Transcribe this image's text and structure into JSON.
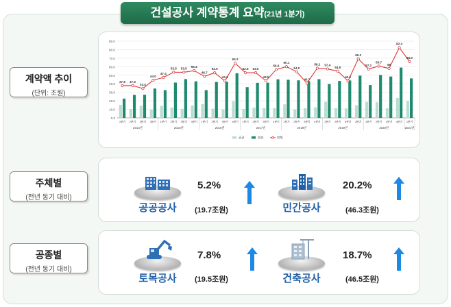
{
  "title": {
    "main": "건설공사 계약통계 요약",
    "sub": "(21년 1분기)"
  },
  "sections": {
    "trend": {
      "label": "계약액 추이",
      "sublabel": "(단위: 조원)"
    },
    "by_entity": {
      "label": "주체별",
      "sublabel": "(전년 동기 대비)"
    },
    "by_type": {
      "label": "공종별",
      "sublabel": "(전년 동기 대비)"
    }
  },
  "entity": [
    {
      "name": "공공공사",
      "pct": "5.2%",
      "amount": "(19.7조원)",
      "icon": "office-buildings-icon",
      "direction": "up"
    },
    {
      "name": "민간공사",
      "pct": "20.2%",
      "amount": "(46.3조원)",
      "icon": "city-towers-icon",
      "direction": "up"
    }
  ],
  "work_type": [
    {
      "name": "토목공사",
      "pct": "7.8%",
      "amount": "(19.5조원)",
      "icon": "excavator-icon",
      "direction": "up"
    },
    {
      "name": "건축공사",
      "pct": "18.7%",
      "amount": "(46.5조원)",
      "icon": "construction-crane-icon",
      "direction": "up"
    }
  ],
  "colors": {
    "public": "#b9ddd0",
    "private": "#1f8a6e",
    "total": "#e03434",
    "arrow": "#1e88e5",
    "title": "#1d6b47",
    "category_text": "#1f5fa8"
  },
  "chart_data": {
    "type": "bar",
    "ylim": [
      0,
      90
    ],
    "yticks": [
      "0.0",
      "10.0",
      "20.0",
      "30.0",
      "40.0",
      "50.0",
      "60.0",
      "70.0",
      "80.0",
      "90.0"
    ],
    "categories": [
      "1분기",
      "2분기",
      "3분기",
      "4분기",
      "1분기",
      "2분기",
      "3분기",
      "4분기",
      "1분기",
      "2분기",
      "3분기",
      "4분기",
      "1분기",
      "2분기",
      "3분기",
      "4분기",
      "1분기",
      "2분기",
      "3분기",
      "4분기",
      "1분기",
      "2분기",
      "3분기",
      "4분기",
      "1분기",
      "2분기",
      "3분기",
      "4분기",
      "1분기"
    ],
    "years": [
      {
        "label": "2014년",
        "count": 4
      },
      {
        "label": "2015년",
        "count": 4
      },
      {
        "label": "2016년",
        "count": 4
      },
      {
        "label": "2017년",
        "count": 4
      },
      {
        "label": "2018년",
        "count": 4
      },
      {
        "label": "2019년",
        "count": 4
      },
      {
        "label": "2020년",
        "count": 4
      },
      {
        "label": "2021년",
        "count": 1
      }
    ],
    "series": [
      {
        "name": "공공",
        "type": "bar",
        "values": [
          15.2,
          10.4,
          14.3,
          9.6,
          14.0,
          12.0,
          10.6,
          14.6,
          16.2,
          10.8,
          10.0,
          19.7,
          10.4,
          11.9,
          11.5,
          11.4,
          15.9,
          9.9,
          11.3,
          12.4,
          18.8,
          11.4,
          11.0,
          14.7,
          18.7,
          18.3,
          11.2,
          23.4,
          19.7
        ]
      },
      {
        "name": "민간",
        "type": "bar",
        "values": [
          22.6,
          26.9,
          27.1,
          34.4,
          32.5,
          41.4,
          45.5,
          42.8,
          32.5,
          42.1,
          42.3,
          52.3,
          36.0,
          41.1,
          41.3,
          45.2,
          44.7,
          44.0,
          43.0,
          45.4,
          39.6,
          43.3,
          43.9,
          49.5,
          38.5,
          50.3,
          48.5,
          59.0,
          46.3
        ]
      },
      {
        "name": "전체",
        "type": "line",
        "values": [
          37.8,
          37.9,
          34.4,
          44.0,
          47.4,
          53.5,
          53.5,
          55.4,
          48.7,
          52.9,
          43.3,
          64.2,
          52.9,
          53.0,
          43.5,
          56.6,
          60.1,
          54.0,
          40.7,
          58.2,
          57.4,
          54.8,
          43.2,
          69.2,
          57.2,
          60.7,
          58.0,
          82.4,
          66.0
        ]
      }
    ],
    "total_labels": [
      "37.8",
      "37.9",
      "34.4",
      "44.0",
      "47.4",
      "53.5",
      "53.5",
      "55.4",
      "48.7",
      "52.9",
      "43.3",
      "64.2",
      "52.9",
      "53.0",
      "43.5",
      "56.6",
      "60.1",
      "54.0",
      "40.7",
      "58.2",
      "57.4",
      "54.8",
      "43.2",
      "69.2",
      "57.2",
      "60.7",
      "58",
      "82.4",
      "66.0"
    ],
    "legend": {
      "position": "bottom"
    },
    "grid": true
  }
}
